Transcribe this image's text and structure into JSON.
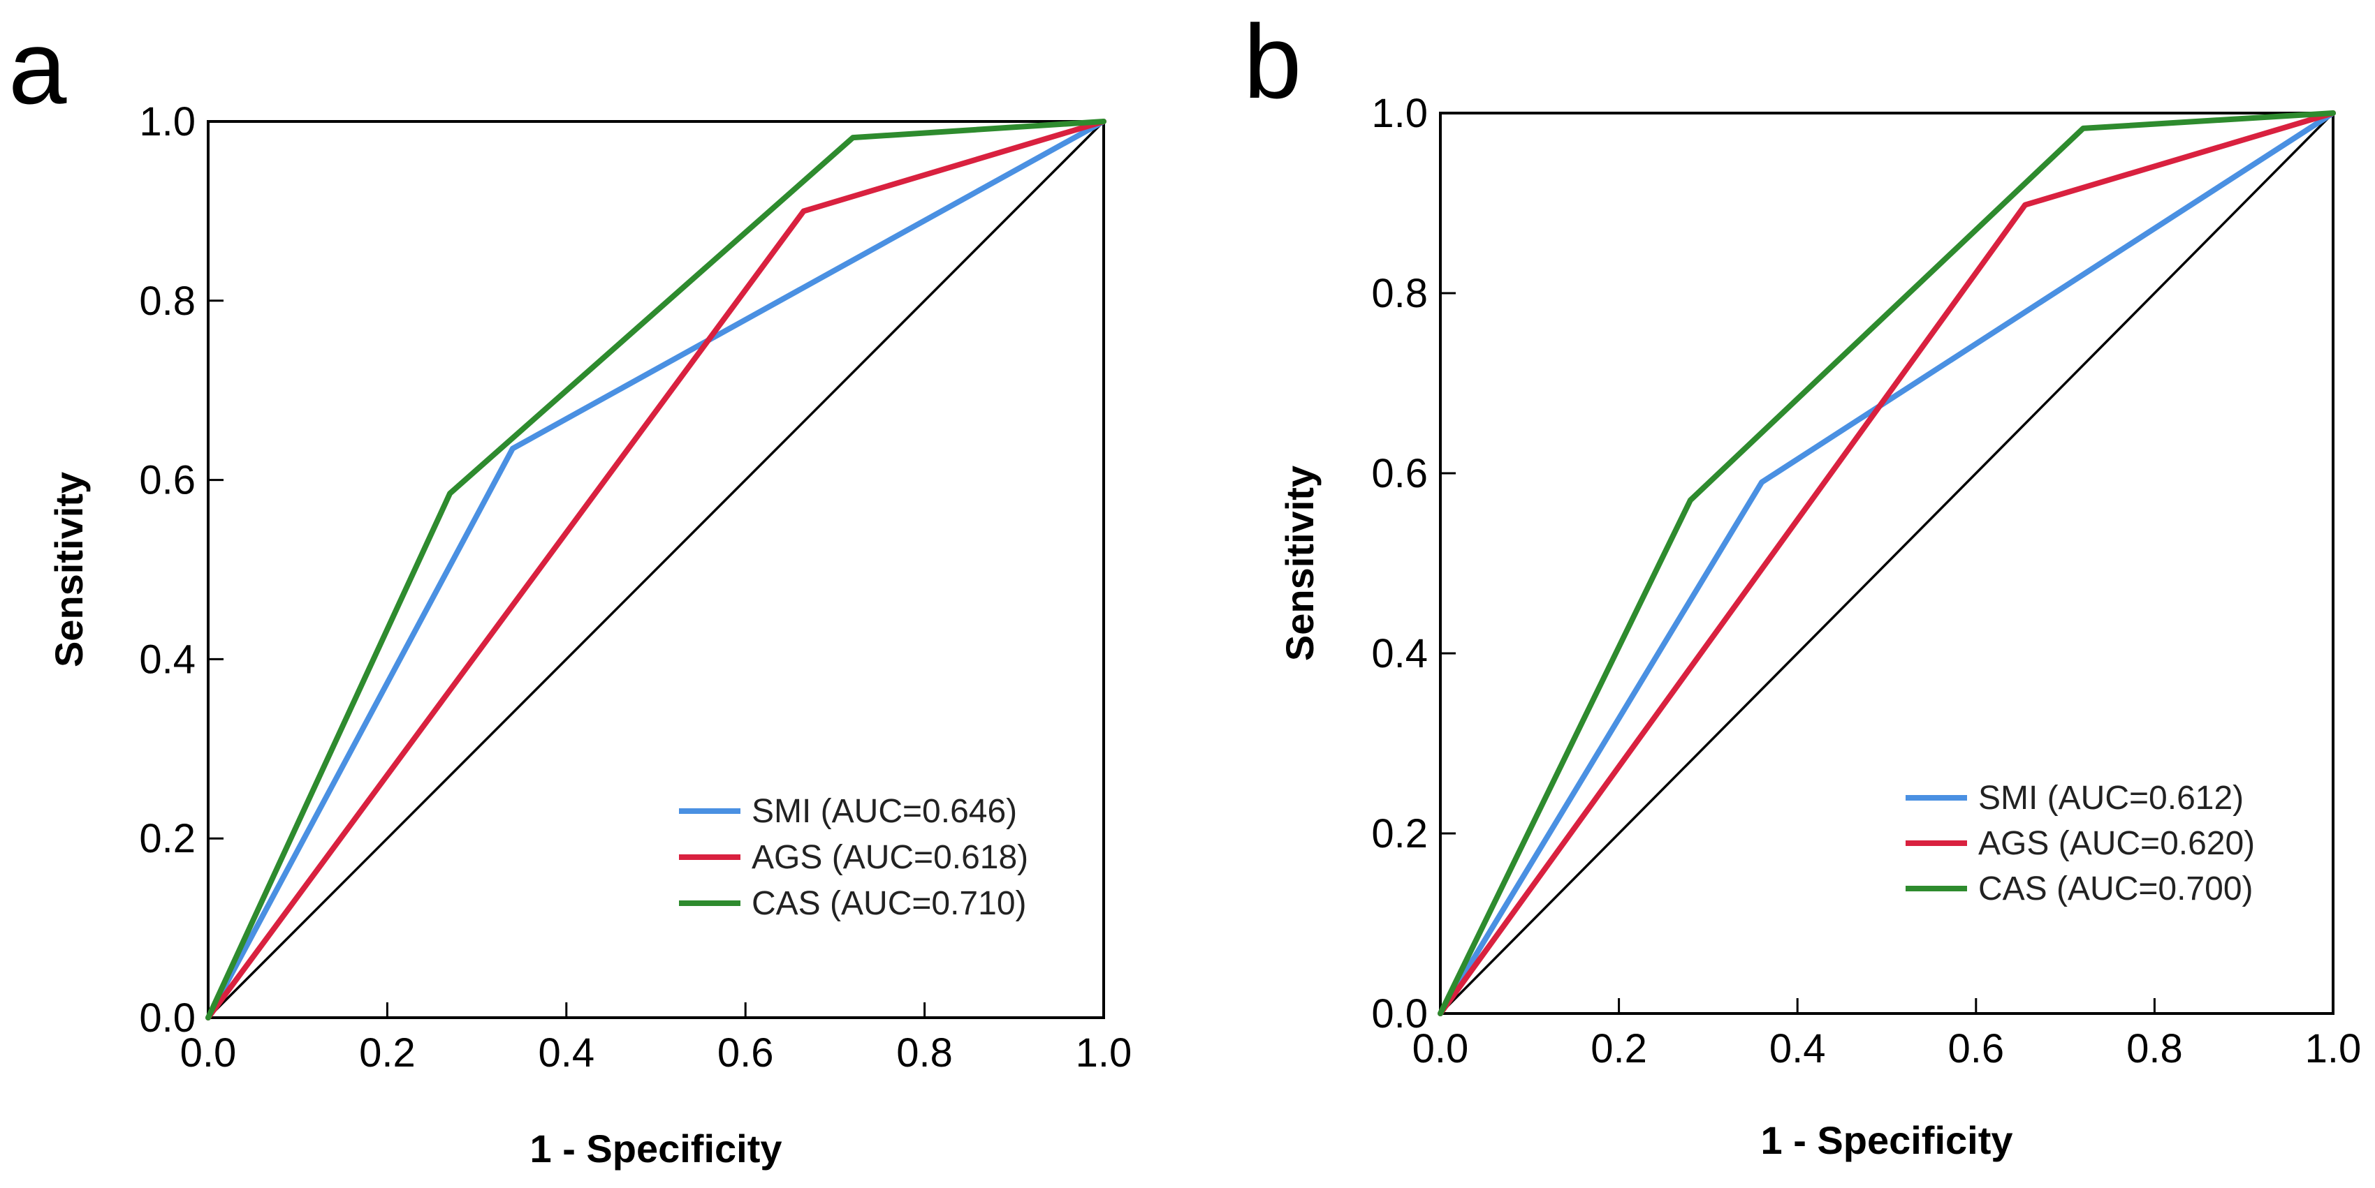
{
  "chart_data": [
    {
      "type": "line",
      "panel_label": "a",
      "xlabel": "1 - Specificity",
      "ylabel": "Sensitivity",
      "xlim": [
        0,
        1
      ],
      "ylim": [
        0,
        1
      ],
      "xticks": [
        "0.0",
        "0.2",
        "0.4",
        "0.6",
        "0.8",
        "1.0"
      ],
      "yticks": [
        "0.0",
        "0.2",
        "0.4",
        "0.6",
        "0.8",
        "1.0"
      ],
      "legend_position": "bottom-right",
      "reference_line": {
        "x": [
          0,
          1
        ],
        "y": [
          0,
          1
        ]
      },
      "series": [
        {
          "name": "SMI (AUC=0.646)",
          "color": "#4a90e2",
          "x": [
            0,
            0.34,
            1
          ],
          "y": [
            0,
            0.635,
            1
          ]
        },
        {
          "name": "AGS (AUC=0.618)",
          "color": "#d9213f",
          "x": [
            0,
            0.665,
            1
          ],
          "y": [
            0,
            0.9,
            1
          ]
        },
        {
          "name": "CAS (AUC=0.710)",
          "color": "#2e8b2e",
          "x": [
            0,
            0.27,
            0.72,
            1
          ],
          "y": [
            0,
            0.585,
            0.982,
            1
          ]
        }
      ]
    },
    {
      "type": "line",
      "panel_label": "b",
      "xlabel": "1 - Specificity",
      "ylabel": "Sensitivity",
      "xlim": [
        0,
        1
      ],
      "ylim": [
        0,
        1
      ],
      "xticks": [
        "0.0",
        "0.2",
        "0.4",
        "0.6",
        "0.8",
        "1.0"
      ],
      "yticks": [
        "0.0",
        "0.2",
        "0.4",
        "0.6",
        "0.8",
        "1.0"
      ],
      "legend_position": "bottom-right",
      "reference_line": {
        "x": [
          0,
          1
        ],
        "y": [
          0,
          1
        ]
      },
      "series": [
        {
          "name": "SMI (AUC=0.612)",
          "color": "#4a90e2",
          "x": [
            0,
            0.36,
            1
          ],
          "y": [
            0,
            0.59,
            1
          ]
        },
        {
          "name": "AGS (AUC=0.620)",
          "color": "#d9213f",
          "x": [
            0,
            0.655,
            1
          ],
          "y": [
            0,
            0.898,
            1
          ]
        },
        {
          "name": "CAS (AUC=0.700)",
          "color": "#2e8b2e",
          "x": [
            0,
            0.28,
            0.72,
            1
          ],
          "y": [
            0,
            0.57,
            0.983,
            1
          ]
        }
      ]
    }
  ]
}
